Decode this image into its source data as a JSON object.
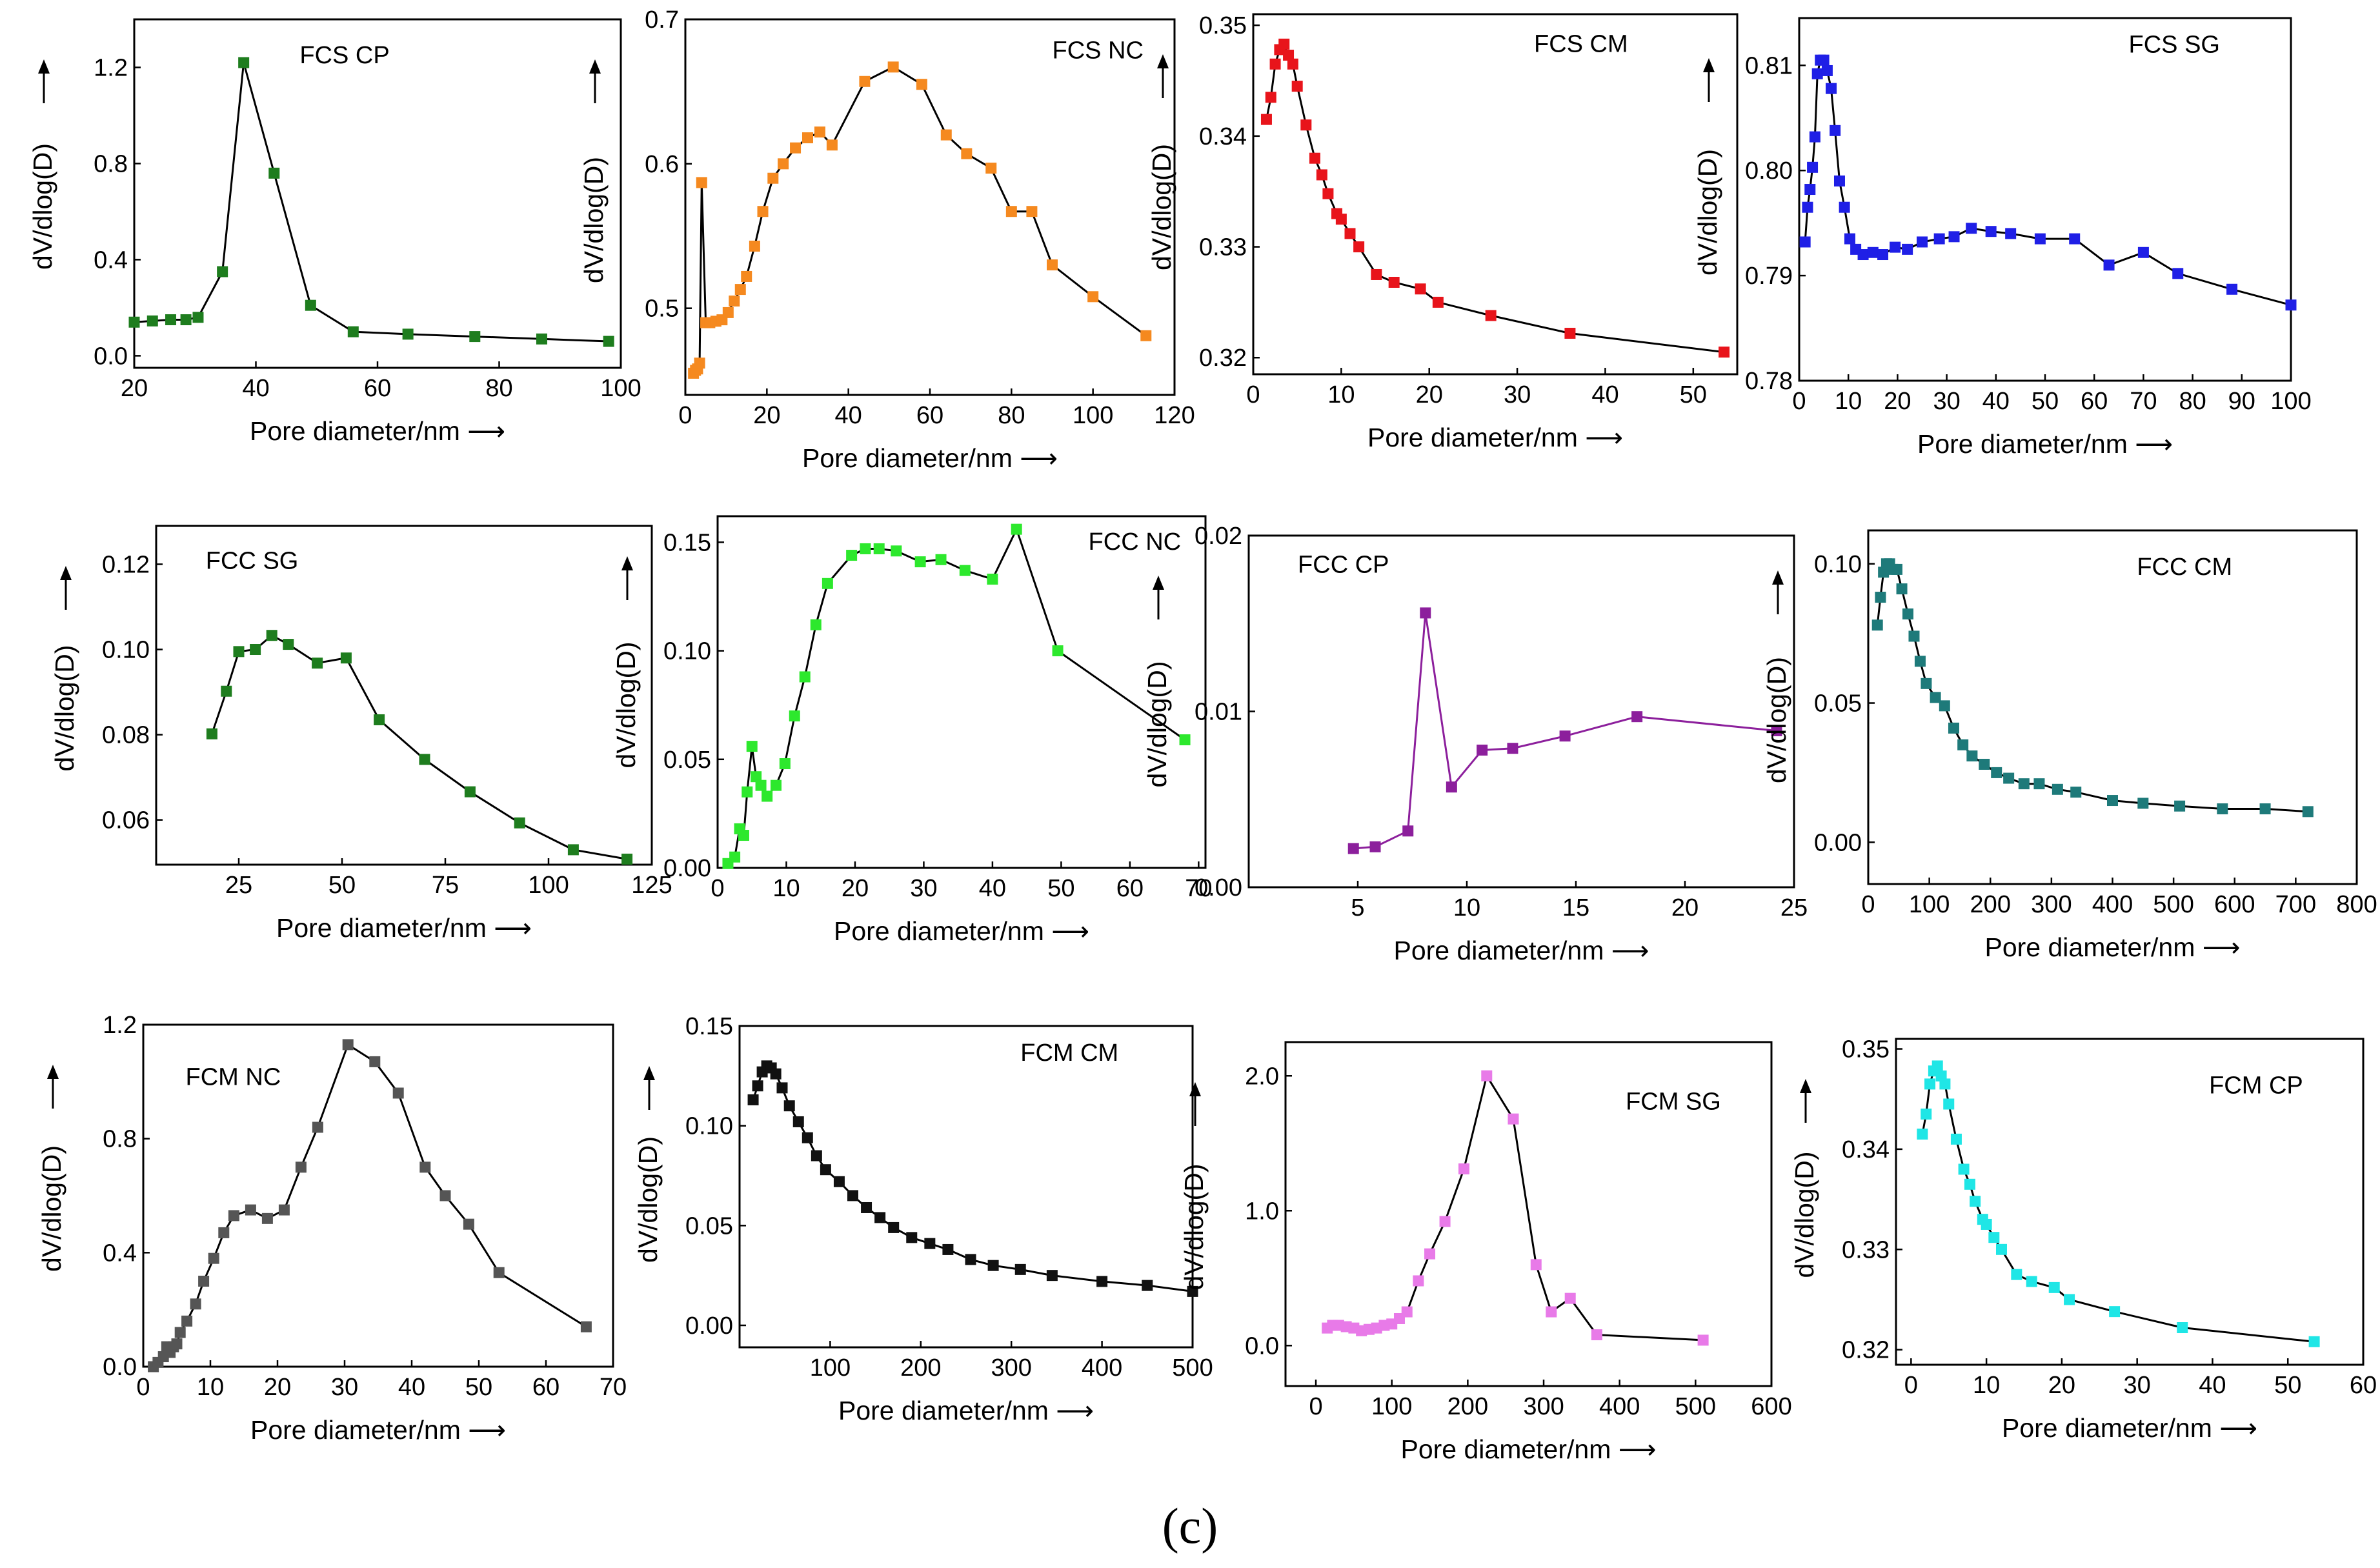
{
  "figure": {
    "label": "(c)",
    "arrow": "⟶"
  },
  "chart_data": [
    {
      "type": "line",
      "title": "FCS CP",
      "color": "#1e7d1e",
      "xlabel": "Pore diameter/nm",
      "ylabel": "dV/dlog(D)",
      "xlim": [
        20,
        100
      ],
      "ylim": [
        -0.05,
        1.4
      ],
      "xticks": [
        20,
        40,
        60,
        80,
        100
      ],
      "xtick_labels": [
        "20",
        "40",
        "60",
        "80",
        "100"
      ],
      "yticks": [
        0.0,
        0.4,
        0.8,
        1.2
      ],
      "ytick_labels": [
        "0.0",
        "0.4",
        "0.8",
        "1.2"
      ],
      "x": [
        20,
        23,
        26,
        28.5,
        30.5,
        34.5,
        38,
        43,
        49,
        56,
        65,
        76,
        87,
        98
      ],
      "y": [
        0.14,
        0.145,
        0.15,
        0.15,
        0.16,
        0.35,
        1.22,
        0.76,
        0.21,
        0.1,
        0.09,
        0.08,
        0.07,
        0.06
      ]
    },
    {
      "type": "line",
      "title": "FCS NC",
      "color": "#f5891f",
      "xlabel": "Pore diameter/nm",
      "ylabel": "dV/dlog(D)",
      "xlim": [
        0,
        120
      ],
      "ylim": [
        0.44,
        0.7
      ],
      "xticks": [
        0,
        20,
        40,
        60,
        80,
        100,
        120
      ],
      "xtick_labels": [
        "0",
        "20",
        "40",
        "60",
        "80",
        "100",
        "120"
      ],
      "yticks": [
        0.5,
        0.6,
        0.7
      ],
      "ytick_labels": [
        "0.5",
        "0.6",
        "0.7"
      ],
      "x": [
        2,
        2.5,
        3,
        3.5,
        4,
        5,
        6,
        7.5,
        9,
        10.5,
        12,
        13.5,
        15,
        17,
        19,
        21.5,
        24,
        27,
        30,
        33,
        36,
        44,
        51,
        58,
        64,
        69,
        75,
        80,
        85,
        90,
        100,
        113
      ],
      "y": [
        0.455,
        0.457,
        0.458,
        0.462,
        0.587,
        0.49,
        0.49,
        0.491,
        0.492,
        0.497,
        0.505,
        0.513,
        0.522,
        0.543,
        0.567,
        0.59,
        0.6,
        0.611,
        0.618,
        0.622,
        0.613,
        0.657,
        0.667,
        0.655,
        0.62,
        0.607,
        0.597,
        0.567,
        0.567,
        0.53,
        0.508,
        0.481
      ]
    },
    {
      "type": "line",
      "title": "FCS CM",
      "color": "#e8141b",
      "xlabel": "Pore diameter/nm",
      "ylabel": "dV/dlog(D)",
      "xlim": [
        0,
        55
      ],
      "ylim": [
        0.3185,
        0.351
      ],
      "xticks": [
        0,
        10,
        20,
        30,
        40,
        50
      ],
      "xtick_labels": [
        "0",
        "10",
        "20",
        "30",
        "40",
        "50"
      ],
      "yticks": [
        0.32,
        0.33,
        0.34,
        0.35
      ],
      "ytick_labels": [
        "0.32",
        "0.33",
        "0.34",
        "0.35"
      ],
      "x": [
        1.5,
        2,
        2.5,
        3,
        3.5,
        4,
        4.5,
        5,
        6,
        7,
        7.8,
        8.5,
        9.5,
        10,
        11,
        12,
        14,
        16,
        19,
        21,
        27,
        36,
        53.5
      ],
      "y": [
        0.3415,
        0.3435,
        0.3465,
        0.3478,
        0.3483,
        0.3473,
        0.3465,
        0.3445,
        0.341,
        0.338,
        0.3365,
        0.3348,
        0.333,
        0.3325,
        0.3312,
        0.33,
        0.3275,
        0.3268,
        0.3262,
        0.325,
        0.3238,
        0.3222,
        0.3205
      ]
    },
    {
      "type": "line",
      "title": "FCS  SG",
      "color": "#1f1fe6",
      "xlabel": "Pore diameter/nm",
      "ylabel": "dV/dlog(D)",
      "xlim": [
        0,
        100
      ],
      "ylim": [
        0.78,
        0.8145
      ],
      "xticks": [
        0,
        10,
        20,
        30,
        40,
        50,
        60,
        70,
        80,
        90,
        100
      ],
      "xtick_labels": [
        "0",
        "10",
        "20",
        "30",
        "40",
        "50",
        "60",
        "70",
        "80",
        "90",
        "100"
      ],
      "yticks": [
        0.78,
        0.79,
        0.8,
        0.81
      ],
      "ytick_labels": [
        "0.78",
        "0.79",
        "0.80",
        "0.81"
      ],
      "x": [
        1.2,
        1.7,
        2.2,
        2.7,
        3.2,
        3.7,
        4.3,
        5,
        5.7,
        6.5,
        7.3,
        8.2,
        9.2,
        10.3,
        11.5,
        13,
        15,
        17,
        19.5,
        22,
        25,
        28.5,
        31.5,
        35,
        39,
        43,
        49,
        56,
        63,
        70,
        77,
        88,
        100
      ],
      "y": [
        0.7932,
        0.7965,
        0.7982,
        0.8003,
        0.8032,
        0.8092,
        0.8105,
        0.8105,
        0.8095,
        0.8078,
        0.8038,
        0.799,
        0.7965,
        0.7935,
        0.7925,
        0.792,
        0.7922,
        0.792,
        0.7927,
        0.7925,
        0.7932,
        0.7935,
        0.7937,
        0.7945,
        0.7942,
        0.794,
        0.7935,
        0.7935,
        0.791,
        0.7922,
        0.7902,
        0.7887,
        0.7872
      ]
    },
    {
      "type": "line",
      "title": "FCC SG",
      "color": "#1e7d1e",
      "xlabel": "Pore diameter/nm",
      "ylabel": "dV/dlog(D)",
      "xlim": [
        5,
        125
      ],
      "ylim": [
        0.0495,
        0.129
      ],
      "xticks": [
        25,
        50,
        75,
        100,
        125
      ],
      "xtick_labels": [
        "25",
        "50",
        "75",
        "100",
        "125"
      ],
      "yticks": [
        0.06,
        0.08,
        0.1,
        0.12
      ],
      "ytick_labels": [
        "0.06",
        "0.08",
        "0.10",
        "0.12"
      ],
      "x": [
        18.5,
        22,
        25,
        29,
        33,
        37,
        44,
        51,
        59,
        70,
        81,
        93,
        106,
        119
      ],
      "y": [
        0.0802,
        0.0902,
        0.0995,
        0.1,
        0.1033,
        0.1012,
        0.0968,
        0.098,
        0.0835,
        0.0742,
        0.0666,
        0.0593,
        0.053,
        0.0508
      ]
    },
    {
      "type": "line",
      "title": "FCC NC",
      "color": "#2de82d",
      "xlabel": "Pore diameter/nm",
      "ylabel": "dV/dlog(D)",
      "xlim": [
        0,
        71
      ],
      "ylim": [
        0,
        0.162
      ],
      "xticks": [
        0,
        10,
        20,
        30,
        40,
        50,
        60,
        70
      ],
      "xtick_labels": [
        "0",
        "10",
        "20",
        "30",
        "40",
        "50",
        "60",
        "70"
      ],
      "yticks": [
        0.0,
        0.05,
        0.1,
        0.15
      ],
      "ytick_labels": [
        "0.00",
        "0.05",
        "0.10",
        "0.15"
      ],
      "x": [
        1.5,
        2.5,
        3.2,
        3.8,
        4.3,
        5,
        5.6,
        6.3,
        7.2,
        8.5,
        9.8,
        11.2,
        12.7,
        14.3,
        16,
        19.5,
        21.5,
        23.5,
        26,
        29.5,
        32.5,
        36,
        40,
        43.5,
        49.5,
        68
      ],
      "y": [
        0.002,
        0.005,
        0.018,
        0.015,
        0.035,
        0.056,
        0.042,
        0.038,
        0.033,
        0.038,
        0.048,
        0.07,
        0.088,
        0.112,
        0.131,
        0.144,
        0.147,
        0.147,
        0.146,
        0.141,
        0.142,
        0.137,
        0.133,
        0.156,
        0.1,
        0.059
      ]
    },
    {
      "type": "line",
      "title": "FCC CP",
      "color": "#8c1f9c",
      "xlabel": "Pore diameter/nm",
      "ylabel": "dV/dlog(D)",
      "xlim": [
        0,
        25
      ],
      "ylim": [
        0,
        0.02
      ],
      "xticks": [
        5,
        10,
        15,
        20,
        25
      ],
      "xtick_labels": [
        "5",
        "10",
        "15",
        "20",
        "25"
      ],
      "yticks": [
        0.0,
        0.01,
        0.02
      ],
      "ytick_labels": [
        "0.00",
        "0.01",
        "0.02"
      ],
      "x": [
        4.8,
        5.8,
        7.3,
        8.1,
        9.3,
        10.7,
        12.1,
        14.5,
        17.8,
        24.2
      ],
      "y": [
        0.0022,
        0.0023,
        0.0032,
        0.0156,
        0.0057,
        0.0078,
        0.0079,
        0.0086,
        0.0097,
        0.0089
      ]
    },
    {
      "type": "line",
      "title": "FCC CM",
      "color": "#1e7a7a",
      "xlabel": "Pore diameter/nm",
      "ylabel": "dV/dlog(D)",
      "xlim": [
        0,
        800
      ],
      "ylim": [
        -0.015,
        0.112
      ],
      "xticks": [
        0,
        100,
        200,
        300,
        400,
        500,
        600,
        700,
        800
      ],
      "xtick_labels": [
        "0",
        "100",
        "200",
        "300",
        "400",
        "500",
        "600",
        "700",
        "800"
      ],
      "yticks": [
        0.0,
        0.05,
        0.1
      ],
      "ytick_labels": [
        "0.00",
        "0.05",
        "0.10"
      ],
      "x": [
        15,
        20,
        25,
        30,
        35,
        40,
        47,
        55,
        65,
        75,
        85,
        95,
        110,
        125,
        140,
        155,
        170,
        190,
        210,
        230,
        255,
        280,
        310,
        340,
        400,
        450,
        510,
        580,
        650,
        720
      ],
      "y": [
        0.078,
        0.088,
        0.097,
        0.1,
        0.1,
        0.098,
        0.098,
        0.091,
        0.082,
        0.074,
        0.065,
        0.057,
        0.052,
        0.049,
        0.041,
        0.035,
        0.031,
        0.028,
        0.025,
        0.023,
        0.021,
        0.021,
        0.019,
        0.018,
        0.015,
        0.014,
        0.013,
        0.012,
        0.012,
        0.011
      ]
    },
    {
      "type": "line",
      "title": "FCM NC",
      "color": "#555555",
      "xlabel": "Pore diameter/nm",
      "ylabel": "dV/dlog(D)",
      "xlim": [
        0,
        70
      ],
      "ylim": [
        0,
        1.2
      ],
      "xticks": [
        0,
        10,
        20,
        30,
        40,
        50,
        60,
        70
      ],
      "xtick_labels": [
        "0",
        "10",
        "20",
        "30",
        "40",
        "50",
        "60",
        "70"
      ],
      "yticks": [
        0.0,
        0.4,
        0.8,
        1.2
      ],
      "ytick_labels": [
        "0.0",
        "0.4",
        "0.8",
        "1.2"
      ],
      "x": [
        1.5,
        2.2,
        3,
        3.5,
        4,
        4.5,
        5,
        5.5,
        6.5,
        7.8,
        9,
        10.5,
        12,
        13.5,
        16,
        18.5,
        21,
        23.5,
        26,
        30.5,
        34.5,
        38,
        42,
        45,
        48.5,
        53,
        66
      ],
      "y": [
        0.0,
        0.015,
        0.035,
        0.07,
        0.05,
        0.07,
        0.08,
        0.12,
        0.16,
        0.22,
        0.3,
        0.38,
        0.47,
        0.53,
        0.55,
        0.52,
        0.55,
        0.7,
        0.84,
        1.13,
        1.07,
        0.96,
        0.7,
        0.6,
        0.5,
        0.33,
        0.14
      ]
    },
    {
      "type": "line",
      "title": "FCM CM",
      "color": "#111111",
      "xlabel": "Pore diameter/nm",
      "ylabel": "dV/dlog(D)",
      "xlim": [
        0,
        500
      ],
      "ylim": [
        -0.011,
        0.15
      ],
      "xticks": [
        100,
        200,
        300,
        400,
        500
      ],
      "xtick_labels": [
        "100",
        "200",
        "300",
        "400",
        "500"
      ],
      "yticks": [
        0.0,
        0.05,
        0.1,
        0.15
      ],
      "ytick_labels": [
        "0.00",
        "0.05",
        "0.10",
        "0.15"
      ],
      "x": [
        15,
        20,
        25,
        30,
        35,
        40,
        47,
        55,
        65,
        75,
        85,
        95,
        110,
        125,
        140,
        155,
        170,
        190,
        210,
        230,
        255,
        280,
        310,
        345,
        400,
        450,
        500
      ],
      "y": [
        0.113,
        0.12,
        0.127,
        0.13,
        0.129,
        0.126,
        0.119,
        0.11,
        0.102,
        0.094,
        0.085,
        0.078,
        0.072,
        0.065,
        0.059,
        0.054,
        0.049,
        0.044,
        0.041,
        0.038,
        0.033,
        0.03,
        0.028,
        0.025,
        0.022,
        0.02,
        0.017
      ]
    },
    {
      "type": "line",
      "title": "FCM SG",
      "color": "#e87ae8",
      "xlabel": "Pore diameter/nm",
      "ylabel": "dV/dlog(D)",
      "xlim": [
        -40,
        600
      ],
      "ylim": [
        -0.3,
        2.25
      ],
      "xticks": [
        0,
        100,
        200,
        300,
        400,
        500,
        600
      ],
      "xtick_labels": [
        "0",
        "100",
        "200",
        "300",
        "400",
        "500",
        "600"
      ],
      "yticks": [
        0.0,
        1.0,
        2.0
      ],
      "ytick_labels": [
        "0.0",
        "1.0",
        "2.0"
      ],
      "x": [
        15,
        22,
        30,
        40,
        50,
        60,
        70,
        80,
        90,
        100,
        110,
        120,
        135,
        150,
        170,
        195,
        225,
        260,
        290,
        310,
        335,
        370,
        510
      ],
      "y": [
        0.13,
        0.15,
        0.15,
        0.14,
        0.13,
        0.11,
        0.12,
        0.13,
        0.15,
        0.16,
        0.2,
        0.25,
        0.48,
        0.68,
        0.92,
        1.31,
        2.0,
        1.68,
        0.6,
        0.25,
        0.35,
        0.08,
        0.04
      ]
    },
    {
      "type": "line",
      "title": "FCM CP",
      "color": "#1fe6e6",
      "xlabel": "Pore diameter/nm",
      "ylabel": "dV/dlog(D)",
      "xlim": [
        -2,
        60
      ],
      "ylim": [
        0.3185,
        0.351
      ],
      "xticks": [
        0,
        10,
        20,
        30,
        40,
        50,
        60
      ],
      "xtick_labels": [
        "0",
        "10",
        "20",
        "30",
        "40",
        "50",
        "60"
      ],
      "yticks": [
        0.32,
        0.33,
        0.34,
        0.35
      ],
      "ytick_labels": [
        "0.32",
        "0.33",
        "0.34",
        "0.35"
      ],
      "x": [
        1.5,
        2,
        2.5,
        3,
        3.5,
        4,
        4.5,
        5,
        6,
        7,
        7.8,
        8.5,
        9.5,
        10,
        11,
        12,
        14,
        16,
        19,
        21,
        27,
        36,
        53.5
      ],
      "y": [
        0.3415,
        0.3435,
        0.3465,
        0.3478,
        0.3483,
        0.3473,
        0.3465,
        0.3445,
        0.341,
        0.338,
        0.3365,
        0.3348,
        0.333,
        0.3325,
        0.3312,
        0.33,
        0.3275,
        0.3268,
        0.3262,
        0.325,
        0.3238,
        0.3222,
        0.3208
      ]
    }
  ]
}
